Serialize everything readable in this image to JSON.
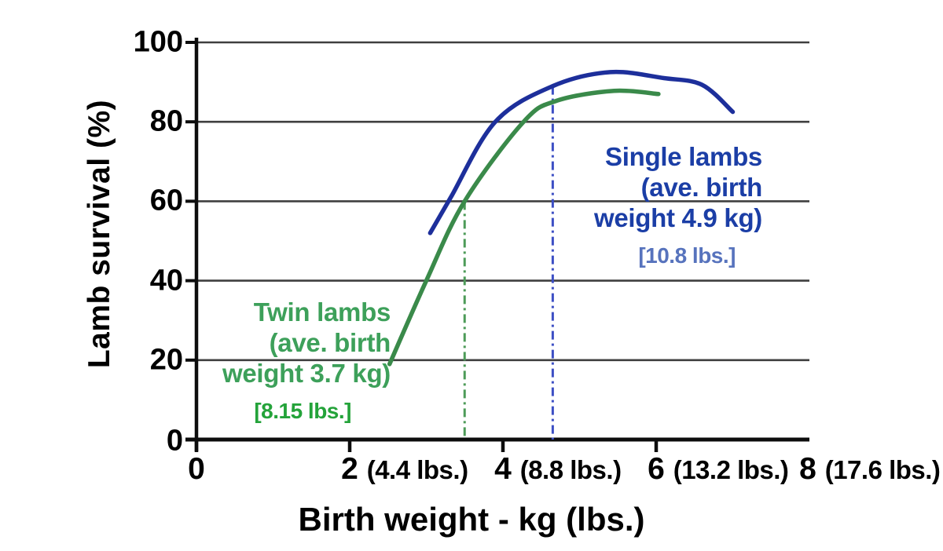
{
  "chart_data": {
    "type": "line",
    "title": "",
    "xlabel": "Birth weight - kg (lbs.)",
    "ylabel": "Lamb survival (%)",
    "xlim": [
      0,
      8
    ],
    "ylim": [
      0,
      100
    ],
    "grid": "horizontal-only",
    "legend_position": "annotations-on-plot",
    "colors": {
      "background": "#ffffff",
      "grid": "#3f3f3f",
      "axis": "#0d0d0d"
    },
    "yticks": [
      {
        "value": 100,
        "label": "100"
      },
      {
        "value": 80,
        "label": "80"
      },
      {
        "value": 60,
        "label": "60"
      },
      {
        "value": 40,
        "label": "40"
      },
      {
        "value": 20,
        "label": "20"
      },
      {
        "value": 0,
        "label": "0"
      }
    ],
    "xticks": [
      {
        "value": 0,
        "label": "0",
        "sub": ""
      },
      {
        "value": 2,
        "label": "2",
        "sub": "(4.4 lbs.)"
      },
      {
        "value": 4,
        "label": "4",
        "sub": "(8.8 lbs.)"
      },
      {
        "value": 6,
        "label": "6",
        "sub": "(13.2 lbs.)"
      },
      {
        "value": 8,
        "label": "8",
        "sub": "(17.6 lbs.)"
      }
    ],
    "series": [
      {
        "key": "single-lambs",
        "name": "Single lambs",
        "color": "#1d2f9b",
        "marker_color": "#3d4fc4",
        "label_color": "#1b3ea6",
        "note_color": "#5773bd",
        "ave_birth_weight_kg": 4.9,
        "ave_birth_weight_lbs": 10.8,
        "points_kg_pct": [
          [
            3.05,
            52
          ],
          [
            3.32,
            61
          ],
          [
            3.9,
            80
          ],
          [
            4.65,
            89
          ],
          [
            5.4,
            92.5
          ],
          [
            6.1,
            91
          ],
          [
            6.6,
            89.3
          ],
          [
            7.0,
            82.5
          ]
        ],
        "avg_marker": {
          "x_kg": 4.65,
          "top_pct": 89
        },
        "label": {
          "lines": [
            "Single lambs",
            "(ave. birth",
            "weight 4.9 kg)"
          ],
          "note": "[10.8 lbs.]"
        }
      },
      {
        "key": "twin-lambs",
        "name": "Twin lambs",
        "color": "#3a8a4a",
        "marker_color": "#4d9b58",
        "label_color": "#3da05a",
        "note_color": "#24a33a",
        "ave_birth_weight_kg": 3.7,
        "ave_birth_weight_lbs": 8.15,
        "points_kg_pct": [
          [
            2.52,
            19
          ],
          [
            3.0,
            40
          ],
          [
            3.5,
            60
          ],
          [
            4.27,
            80
          ],
          [
            4.7,
            85.3
          ],
          [
            5.45,
            87.8
          ],
          [
            6.03,
            87
          ]
        ],
        "avg_marker": {
          "x_kg": 3.5,
          "top_pct": 60
        },
        "label": {
          "lines": [
            "Twin lambs",
            "(ave. birth",
            "weight 3.7 kg)"
          ],
          "note": "[8.15 lbs.]"
        }
      }
    ]
  }
}
